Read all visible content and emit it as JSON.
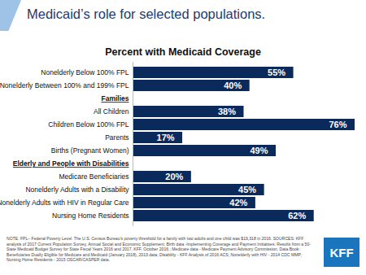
{
  "chart_data": {
    "type": "bar",
    "orientation": "horizontal",
    "title": "Medicaid’s role for selected populations.",
    "subtitle": "Percent with Medicaid Coverage",
    "categories": [
      "Nonelderly Below 100% FPL",
      "Nonelderly Between 100% and 199% FPL",
      "Families",
      "All Children",
      "Children Below 100% FPL",
      "Parents",
      "Births (Pregnant Women)",
      "Elderly and People with Disabilities",
      "Medicare Beneficiaries",
      "Nonelderly Adults with a Disability",
      "Nonelderly Adults with HIV in Regular Care",
      "Nursing Home Residents"
    ],
    "values": [
      55,
      40,
      null,
      38,
      76,
      17,
      49,
      null,
      20,
      45,
      42,
      62
    ],
    "value_labels": [
      "55%",
      "40%",
      null,
      "38%",
      "76%",
      "17%",
      "49%",
      null,
      "20%",
      "45%",
      "42%",
      "62%"
    ],
    "data_labels": true,
    "color": "#0b2a5c",
    "xlim": [
      0,
      76
    ],
    "xticks": [],
    "tick_labels": "y",
    "grid": false,
    "note": "NOTE: FPL– Federal Poverty Level. The U.S. Census Bureau’s poverty threshold for a family with two adults and one child was $19,318 in 2016. SOURCES: KFF analysis of 2017 Current Population Survey, Annual Social and Economic Supplement; Birth data -Implementing Coverage and Payment Initiatives: Results from a 50-State Medicaid Budget Survey for State Fiscal Years 2016 and 2017, KFF, October 2016.; Medicare data - Medicare Payment Advisory Commission, Data Book: Beneficiaries Dually Eligible for Medicare and Medicaid (January 2018), 2013 data; Disability - KFF Analysis of 2016 ACS; Nonelderly with HIV - 2014 CDC MMP; Nursing Home Residents - 2015 OSCAR/CASPER data.",
    "logo": "KFF"
  }
}
